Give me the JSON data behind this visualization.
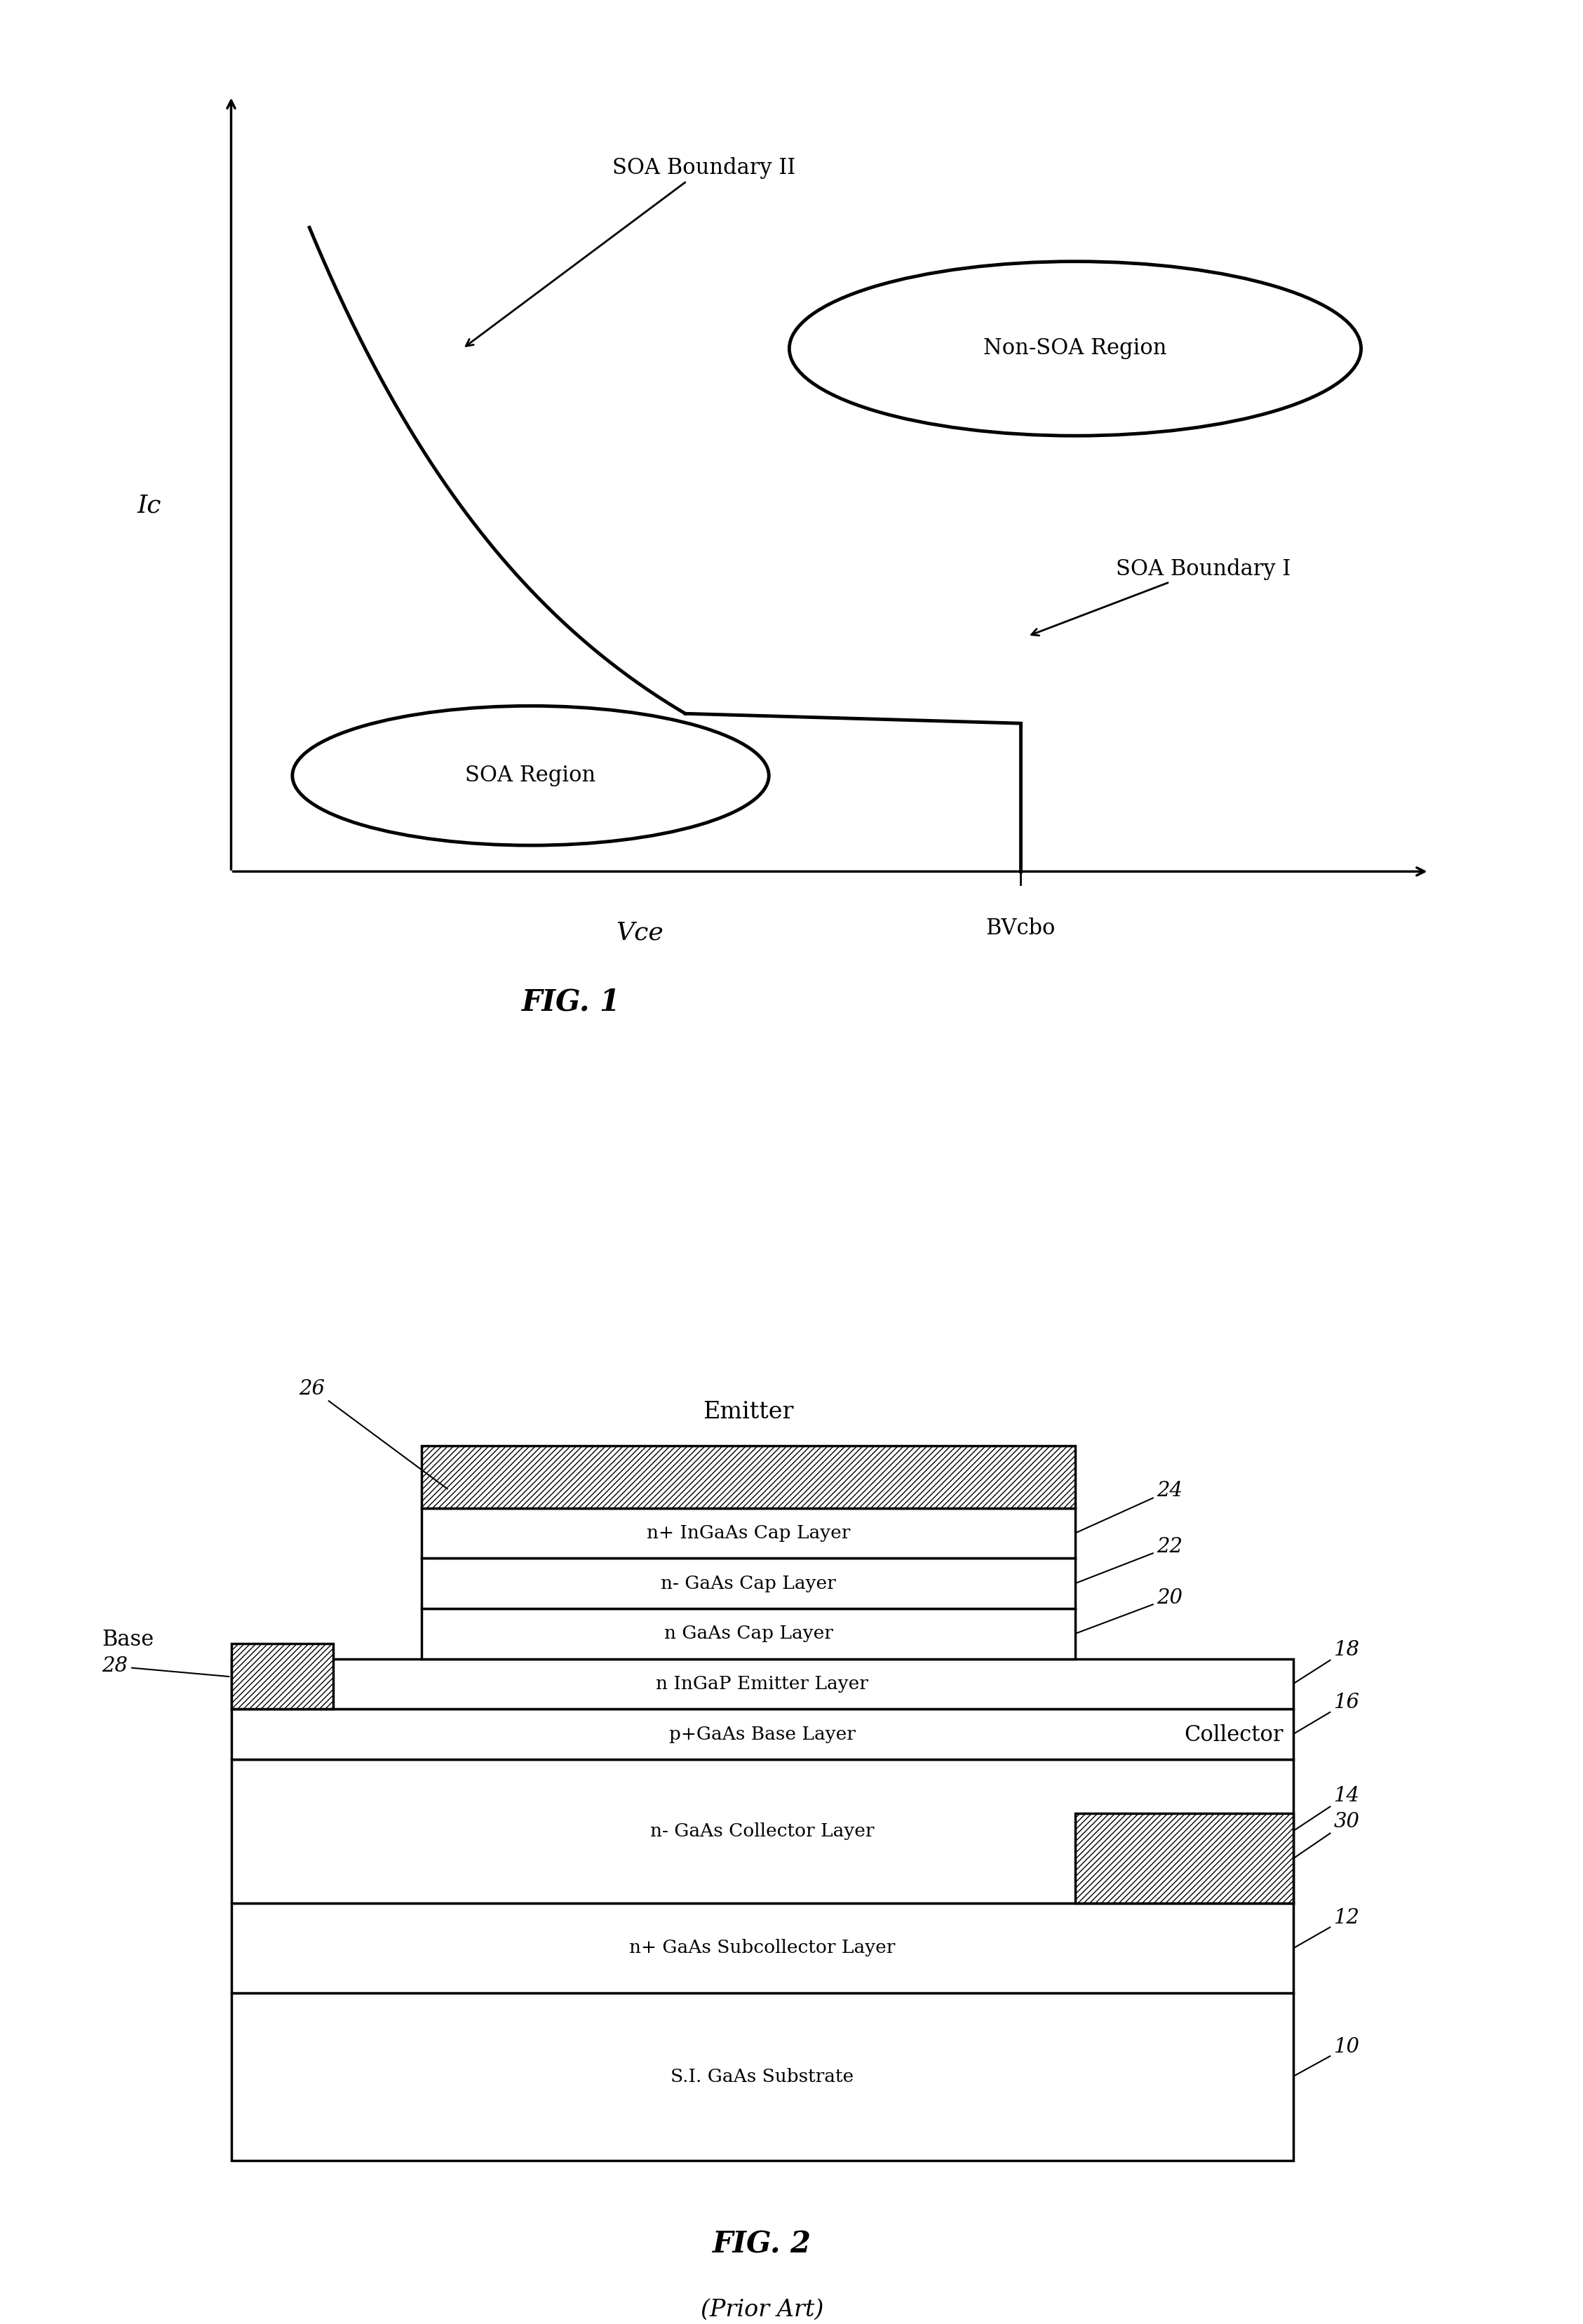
{
  "bg_color": "#ffffff",
  "fig1": {
    "title": "FIG. 1",
    "xlabel": "Vce",
    "ylabel": "Ic",
    "bvcbo_label": "BVcbo",
    "soa_boundary_I": "SOA Boundary I",
    "soa_boundary_II": "SOA Boundary II",
    "soa_region": "SOA Region",
    "non_soa_region": "Non-SOA Region"
  },
  "fig2": {
    "title": "FIG. 2",
    "subtitle": "(Prior Art)",
    "emitter_label": "Emitter",
    "base_label": "Base",
    "collector_label": "Collector"
  }
}
